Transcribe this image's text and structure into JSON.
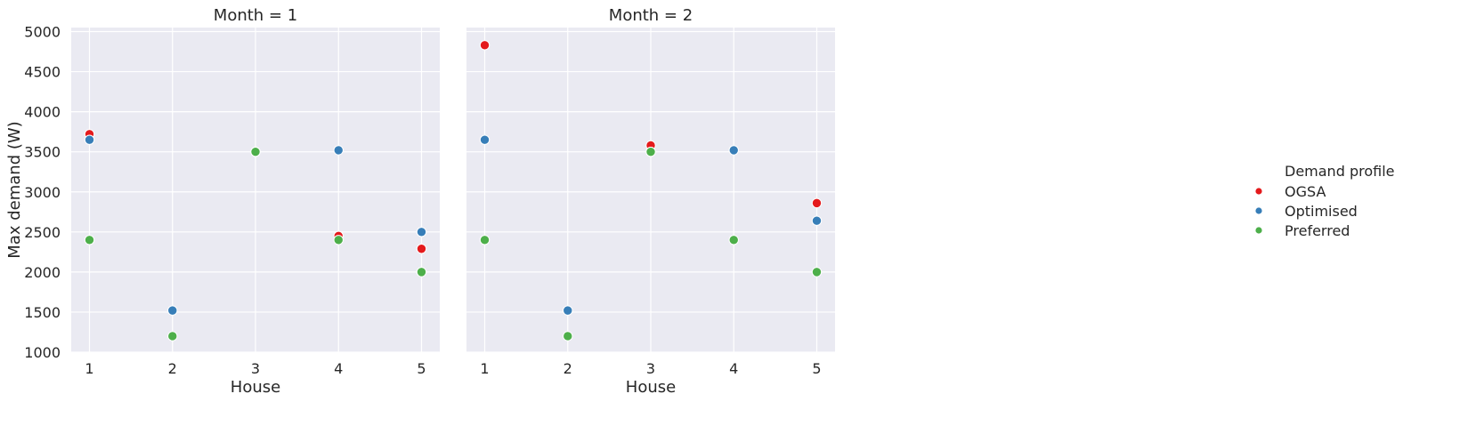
{
  "chart_data": [
    {
      "type": "scatter",
      "title": "Month = 1",
      "xlabel": "House",
      "ylabel": "Max demand (W)",
      "xlim": [
        0.78,
        5.22
      ],
      "ylim": [
        1000,
        5050
      ],
      "xticks": [
        1,
        2,
        3,
        4,
        5
      ],
      "yticks": [
        1000,
        1500,
        2000,
        2500,
        3000,
        3500,
        4000,
        4500,
        5000
      ],
      "grid": true,
      "series": [
        {
          "name": "OGSA",
          "x": [
            1,
            2,
            3,
            4,
            5
          ],
          "y": [
            3720,
            1520,
            3500,
            2450,
            2290
          ]
        },
        {
          "name": "Optimised",
          "x": [
            1,
            2,
            3,
            4,
            5
          ],
          "y": [
            3650,
            1520,
            3500,
            3520,
            2500
          ]
        },
        {
          "name": "Preferred",
          "x": [
            1,
            2,
            3,
            4,
            5
          ],
          "y": [
            2400,
            1200,
            3500,
            2400,
            2000
          ]
        }
      ]
    },
    {
      "type": "scatter",
      "title": "Month = 2",
      "xlabel": "House",
      "ylabel": "",
      "xlim": [
        0.78,
        5.22
      ],
      "ylim": [
        1000,
        5050
      ],
      "xticks": [
        1,
        2,
        3,
        4,
        5
      ],
      "yticks": [
        1000,
        1500,
        2000,
        2500,
        3000,
        3500,
        4000,
        4500,
        5000
      ],
      "grid": true,
      "series": [
        {
          "name": "OGSA",
          "x": [
            1,
            2,
            3,
            4,
            5
          ],
          "y": [
            4830,
            1520,
            3580,
            3520,
            2860
          ]
        },
        {
          "name": "Optimised",
          "x": [
            1,
            2,
            3,
            4,
            5
          ],
          "y": [
            3650,
            1520,
            3500,
            3520,
            2640
          ]
        },
        {
          "name": "Preferred",
          "x": [
            1,
            2,
            3,
            4,
            5
          ],
          "y": [
            2400,
            1200,
            3500,
            2400,
            2000
          ]
        }
      ]
    }
  ],
  "legend": {
    "title": "Demand profile",
    "placement": "right",
    "items": [
      {
        "label": "OGSA",
        "color": "#e41a1c"
      },
      {
        "label": "Optimised",
        "color": "#377eb8"
      },
      {
        "label": "Preferred",
        "color": "#4daf4a"
      }
    ]
  },
  "colors": {
    "panel_background": "#eaeaf2",
    "grid": "#ffffff",
    "OGSA": "#e41a1c",
    "Optimised": "#377eb8",
    "Preferred": "#4daf4a"
  }
}
